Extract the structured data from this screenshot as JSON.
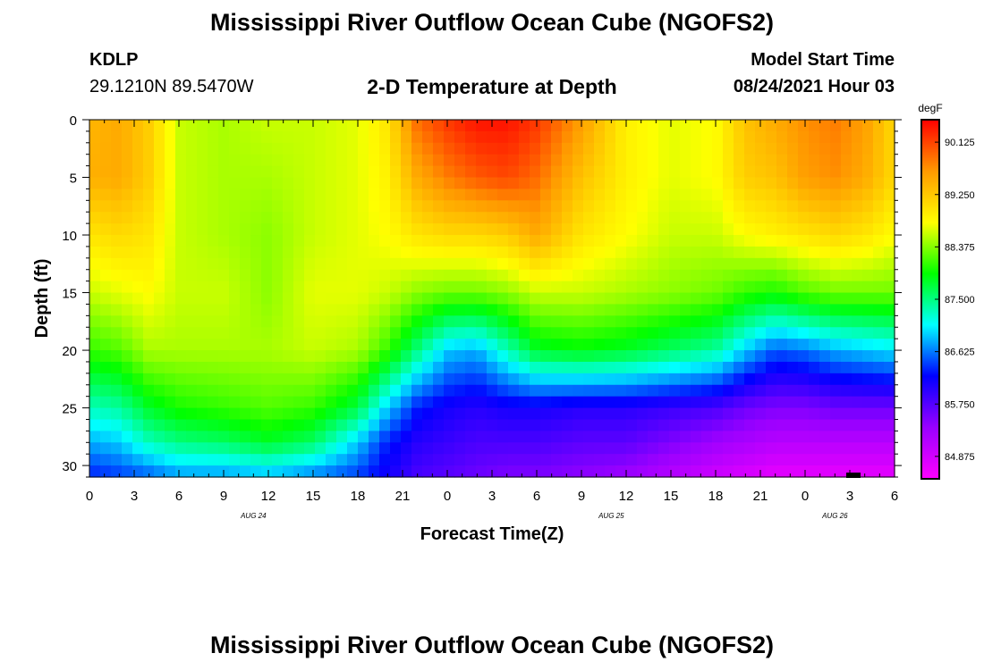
{
  "title": "Mississippi River Outflow Ocean Cube (NGOFS2)",
  "footer_title": "Mississippi River Outflow Ocean Cube (NGOFS2)",
  "station": {
    "id": "KDLP",
    "coords": "29.1210N  89.5470W"
  },
  "subtitle": "2-D Temperature at Depth",
  "model": {
    "label": "Model Start Time",
    "datetime": "08/24/2021 Hour 03"
  },
  "chart_data": {
    "type": "heatmap",
    "title": "2-D Temperature at Depth",
    "xlabel": "Forecast Time(Z)",
    "ylabel": "Depth (ft)",
    "x_hours_range": [
      0,
      54
    ],
    "x_tick_labels": [
      "0",
      "3",
      "6",
      "9",
      "12",
      "15",
      "18",
      "21",
      "0",
      "3",
      "6",
      "9",
      "12",
      "15",
      "18",
      "21",
      "0",
      "3",
      "6"
    ],
    "day_labels": [
      {
        "label": "AUG  24",
        "hour": 11
      },
      {
        "label": "AUG  25",
        "hour": 35
      },
      {
        "label": "AUG  26",
        "hour": 50
      }
    ],
    "y_range": [
      0,
      31
    ],
    "y_tick_labels": [
      "0",
      "5",
      "10",
      "15",
      "20",
      "25",
      "30"
    ],
    "y_ticks": [
      0,
      5,
      10,
      15,
      20,
      25,
      30
    ],
    "colorbar": {
      "unit": "degF",
      "min": 84.5,
      "max": 90.5,
      "tick_labels": [
        "90.125",
        "89.250",
        "88.375",
        "87.500",
        "86.625",
        "85.750",
        "84.875"
      ],
      "tick_values": [
        90.125,
        89.25,
        88.375,
        87.5,
        86.625,
        85.75,
        84.875
      ],
      "colors": [
        "#ff00ff",
        "#9900ff",
        "#0000ff",
        "#00ffff",
        "#00ff00",
        "#ffff00",
        "#ff9900",
        "#ff0000"
      ]
    },
    "temperature_profiles": [
      {
        "hour": 0,
        "values_at_depth": {
          "0": 89.4,
          "5": 89.45,
          "10": 89.0,
          "15": 88.6,
          "20": 88.1,
          "25": 87.3,
          "28": 86.8,
          "31": 86.3
        }
      },
      {
        "hour": 2,
        "values_at_depth": {
          "0": 89.5,
          "5": 89.5,
          "10": 89.1,
          "15": 88.7,
          "20": 88.2,
          "25": 87.4,
          "28": 86.9,
          "31": 86.4
        }
      },
      {
        "hour": 4,
        "values_at_depth": {
          "0": 89.2,
          "5": 89.2,
          "10": 89.0,
          "15": 88.8,
          "20": 88.5,
          "25": 87.8,
          "28": 87.3,
          "31": 86.5
        }
      },
      {
        "hour": 6,
        "values_at_depth": {
          "0": 88.6,
          "5": 88.6,
          "10": 88.6,
          "15": 88.6,
          "20": 88.5,
          "25": 88.0,
          "28": 87.5,
          "31": 86.7
        }
      },
      {
        "hour": 9,
        "values_at_depth": {
          "0": 88.5,
          "5": 88.5,
          "10": 88.5,
          "15": 88.6,
          "20": 88.5,
          "25": 88.1,
          "28": 87.6,
          "31": 86.7
        }
      },
      {
        "hour": 12,
        "values_at_depth": {
          "0": 88.6,
          "5": 88.5,
          "10": 88.4,
          "15": 88.4,
          "20": 88.5,
          "25": 88.2,
          "28": 87.8,
          "31": 86.8
        }
      },
      {
        "hour": 15,
        "values_at_depth": {
          "0": 88.6,
          "5": 88.6,
          "10": 88.6,
          "15": 88.7,
          "20": 88.6,
          "25": 88.1,
          "28": 87.6,
          "31": 86.6
        }
      },
      {
        "hour": 18,
        "values_at_depth": {
          "0": 88.7,
          "5": 88.7,
          "10": 88.7,
          "15": 88.7,
          "20": 88.5,
          "25": 87.7,
          "28": 86.9,
          "31": 86.4
        }
      },
      {
        "hour": 20,
        "values_at_depth": {
          "0": 89.0,
          "5": 88.9,
          "10": 88.8,
          "15": 88.6,
          "20": 88.1,
          "25": 86.9,
          "28": 86.3,
          "31": 86.1
        }
      },
      {
        "hour": 22,
        "values_at_depth": {
          "0": 89.9,
          "5": 89.5,
          "10": 89.0,
          "15": 88.4,
          "20": 87.5,
          "25": 86.3,
          "28": 86.0,
          "31": 85.8
        }
      },
      {
        "hour": 24,
        "values_at_depth": {
          "0": 90.2,
          "5": 89.8,
          "10": 89.1,
          "15": 88.3,
          "20": 86.9,
          "25": 86.1,
          "28": 85.9,
          "31": 85.7
        }
      },
      {
        "hour": 26,
        "values_at_depth": {
          "0": 90.4,
          "5": 90.0,
          "10": 89.1,
          "15": 88.3,
          "20": 86.8,
          "25": 86.0,
          "28": 85.8,
          "31": 85.6
        }
      },
      {
        "hour": 28,
        "values_at_depth": {
          "0": 90.4,
          "5": 90.1,
          "10": 89.2,
          "15": 88.4,
          "20": 87.3,
          "25": 86.1,
          "28": 85.8,
          "31": 85.5
        }
      },
      {
        "hour": 30,
        "values_at_depth": {
          "0": 90.2,
          "5": 89.9,
          "10": 89.5,
          "15": 88.6,
          "20": 87.8,
          "25": 86.1,
          "28": 85.8,
          "31": 85.5
        }
      },
      {
        "hour": 33,
        "values_at_depth": {
          "0": 89.6,
          "5": 89.3,
          "10": 89.0,
          "15": 88.6,
          "20": 87.9,
          "25": 86.0,
          "28": 85.7,
          "31": 85.4
        }
      },
      {
        "hour": 36,
        "values_at_depth": {
          "0": 88.9,
          "5": 88.9,
          "10": 88.8,
          "15": 88.5,
          "20": 87.8,
          "25": 86.0,
          "28": 85.7,
          "31": 85.3
        }
      },
      {
        "hour": 39,
        "values_at_depth": {
          "0": 88.7,
          "5": 88.7,
          "10": 88.6,
          "15": 88.4,
          "20": 87.6,
          "25": 85.9,
          "28": 85.5,
          "31": 85.1
        }
      },
      {
        "hour": 42,
        "values_at_depth": {
          "0": 88.8,
          "5": 88.8,
          "10": 88.6,
          "15": 88.3,
          "20": 87.4,
          "25": 85.8,
          "28": 85.3,
          "31": 84.9
        }
      },
      {
        "hour": 44,
        "values_at_depth": {
          "0": 89.3,
          "5": 89.2,
          "10": 88.8,
          "15": 88.1,
          "20": 86.9,
          "25": 85.6,
          "28": 85.2,
          "31": 84.8
        }
      },
      {
        "hour": 46,
        "values_at_depth": {
          "0": 89.5,
          "5": 89.3,
          "10": 88.9,
          "15": 88.0,
          "20": 86.5,
          "25": 85.5,
          "28": 85.1,
          "31": 84.7
        }
      },
      {
        "hour": 48,
        "values_at_depth": {
          "0": 89.7,
          "5": 89.6,
          "10": 89.0,
          "15": 88.2,
          "20": 86.6,
          "25": 85.5,
          "28": 85.1,
          "31": 84.7
        }
      },
      {
        "hour": 50,
        "values_at_depth": {
          "0": 89.8,
          "5": 89.7,
          "10": 89.1,
          "15": 88.3,
          "20": 86.8,
          "25": 85.6,
          "28": 85.1,
          "31": 84.7
        }
      },
      {
        "hour": 52,
        "values_at_depth": {
          "0": 89.6,
          "5": 89.5,
          "10": 89.0,
          "15": 88.3,
          "20": 86.9,
          "25": 85.6,
          "28": 85.1,
          "31": 84.7
        }
      },
      {
        "hour": 54,
        "values_at_depth": {
          "0": 89.1,
          "5": 89.1,
          "10": 88.8,
          "15": 88.3,
          "20": 87.0,
          "25": 85.6,
          "28": 85.1,
          "31": 84.7
        }
      }
    ]
  }
}
